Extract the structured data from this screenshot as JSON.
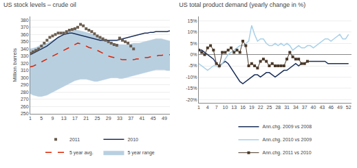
{
  "chart_data": [
    {
      "type": "line",
      "title": "US stock levels – crude oil",
      "ylabel": "Million barrels",
      "x": [
        1,
        2,
        3,
        4,
        5,
        6,
        7,
        8,
        9,
        10,
        11,
        12,
        13,
        14,
        15,
        16,
        17,
        18,
        19,
        20,
        21,
        22,
        23,
        24,
        25,
        26,
        27,
        28,
        29,
        30,
        31,
        32,
        33,
        34,
        35,
        36,
        37,
        38,
        39,
        40,
        41,
        42,
        43,
        44,
        45,
        46,
        47,
        48,
        49,
        50,
        51
      ],
      "xlim": [
        1,
        51
      ],
      "ylim": [
        250,
        385
      ],
      "xticks": [
        1,
        5,
        9,
        13,
        17,
        21,
        25,
        29,
        33,
        37,
        41,
        45,
        49
      ],
      "yticks": [
        250,
        260,
        270,
        280,
        290,
        300,
        310,
        320,
        330,
        340,
        350,
        360,
        370,
        380
      ],
      "grid": "y",
      "legend": "bottom",
      "series": [
        {
          "name": "5 year range",
          "type": "area",
          "color": "#b8cfe0",
          "lower": [
            278,
            276,
            275,
            274,
            274,
            275,
            276,
            278,
            280,
            282,
            284,
            286,
            288,
            290,
            292,
            294,
            296,
            297,
            298,
            298,
            298,
            297,
            296,
            295,
            295,
            296,
            297,
            298,
            299,
            300,
            300,
            300,
            299,
            299,
            300,
            301,
            302,
            303,
            304,
            305,
            306,
            307,
            308,
            309,
            310,
            311,
            311,
            311,
            311,
            310,
            310
          ],
          "upper": [
            340,
            341,
            342,
            344,
            346,
            347,
            348,
            350,
            352,
            354,
            356,
            358,
            360,
            362,
            364,
            365,
            366,
            366,
            365,
            364,
            363,
            362,
            361,
            360,
            358,
            356,
            354,
            352,
            350,
            349,
            348,
            347,
            346,
            346,
            346,
            346,
            347,
            348,
            348,
            348,
            349,
            350,
            351,
            352,
            353,
            354,
            354,
            354,
            353,
            352,
            351
          ]
        },
        {
          "name": "5 year avg.",
          "color": "#dd2200",
          "line_style": "dashed",
          "values": [
            315,
            316,
            318,
            320,
            322,
            324,
            326,
            328,
            330,
            332,
            334,
            336,
            338,
            340,
            342,
            344,
            346,
            348,
            347,
            346,
            344,
            342,
            341,
            340,
            338,
            336,
            334,
            332,
            330,
            329,
            328,
            327,
            326,
            325,
            325,
            325,
            325,
            325,
            326,
            326,
            327,
            328,
            328,
            329,
            330,
            330,
            331,
            331,
            332,
            332,
            332
          ]
        },
        {
          "name": "2010",
          "color": "#1a2f5a",
          "line_style": "solid",
          "values": [
            332,
            334,
            336,
            338,
            340,
            342,
            344,
            347,
            350,
            353,
            356,
            358,
            360,
            361,
            362,
            362,
            361,
            360,
            359,
            358,
            357,
            356,
            355,
            354,
            353,
            352,
            352,
            352,
            352,
            352,
            352,
            352,
            353,
            354,
            355,
            356,
            357,
            358,
            359,
            360,
            361,
            362,
            362,
            363,
            363,
            364,
            364,
            364,
            364,
            364,
            365
          ]
        },
        {
          "name": "2011",
          "color": "#6b5d4f",
          "line_style": "none",
          "marker": "square",
          "values": [
            334,
            336,
            338,
            340,
            344,
            348,
            352,
            356,
            358,
            360,
            362,
            362,
            362,
            364,
            366,
            367,
            368,
            370,
            374,
            372,
            368,
            366,
            364,
            361,
            358,
            356,
            354,
            352,
            350,
            348,
            346,
            345,
            355,
            352,
            350,
            348,
            344,
            340,
            null,
            null,
            null,
            null,
            null,
            null,
            null,
            null,
            null,
            null,
            null,
            null,
            null
          ]
        }
      ]
    },
    {
      "type": "line",
      "title": "US total product demand (yearly change in %)",
      "x": [
        1,
        2,
        3,
        4,
        5,
        6,
        7,
        8,
        9,
        10,
        11,
        12,
        13,
        14,
        15,
        16,
        17,
        18,
        19,
        20,
        21,
        22,
        23,
        24,
        25,
        26,
        27,
        28,
        29,
        30,
        31,
        32,
        33,
        34,
        35,
        36,
        37,
        38,
        39,
        40,
        41,
        42,
        43,
        44,
        45,
        46,
        47,
        48,
        49,
        50,
        51,
        52
      ],
      "xlim": [
        1,
        53
      ],
      "ylim": [
        -0.215,
        0.17
      ],
      "xticks": [
        1,
        4,
        7,
        10,
        13,
        16,
        19,
        22,
        25,
        28,
        31,
        34,
        37,
        40,
        43,
        46,
        49,
        52
      ],
      "yticks": [
        {
          "value": -0.2,
          "label": "-20%"
        },
        {
          "value": -0.15,
          "label": "-15%"
        },
        {
          "value": -0.1,
          "label": "-10%"
        },
        {
          "value": -0.05,
          "label": "-5%"
        },
        {
          "value": 0.0,
          "label": "0%"
        },
        {
          "value": 0.05,
          "label": "5%"
        },
        {
          "value": 0.1,
          "label": "10%"
        },
        {
          "value": 0.15,
          "label": "15%"
        }
      ],
      "grid": "y",
      "legend": "bottom",
      "series": [
        {
          "name": "Ann.chg. 2009 vs 2008",
          "color": "#1a2f5a",
          "line_style": "solid",
          "values": [
            0.02,
            0.02,
            0.01,
            0.0,
            -0.01,
            -0.02,
            -0.04,
            -0.05,
            -0.04,
            -0.03,
            -0.04,
            -0.06,
            -0.08,
            -0.1,
            -0.12,
            -0.13,
            -0.12,
            -0.11,
            -0.1,
            -0.09,
            -0.09,
            -0.1,
            -0.09,
            -0.08,
            -0.08,
            -0.09,
            -0.1,
            -0.09,
            -0.08,
            -0.07,
            -0.07,
            -0.06,
            -0.05,
            -0.04,
            -0.05,
            -0.04,
            -0.04,
            -0.03,
            -0.03,
            -0.03,
            -0.03,
            -0.03,
            -0.03,
            -0.03,
            -0.04,
            -0.04,
            -0.04,
            -0.04,
            -0.04,
            -0.04,
            -0.04,
            -0.04
          ]
        },
        {
          "name": "Ann.chg. 2010 vs 2009",
          "color": "#a8d0e8",
          "line_style": "solid",
          "values": [
            -0.04,
            -0.05,
            -0.06,
            -0.07,
            -0.06,
            -0.05,
            -0.05,
            -0.06,
            -0.04,
            -0.02,
            0.0,
            0.01,
            0.02,
            0.03,
            0.04,
            0.04,
            0.05,
            0.06,
            0.13,
            0.09,
            0.06,
            0.07,
            0.07,
            0.05,
            0.04,
            0.04,
            0.05,
            0.04,
            0.05,
            0.04,
            0.05,
            0.04,
            0.02,
            0.03,
            0.04,
            0.03,
            0.03,
            0.04,
            0.04,
            0.03,
            0.04,
            0.05,
            0.06,
            0.07,
            0.07,
            0.06,
            0.07,
            0.08,
            0.09,
            0.07,
            0.07,
            0.09
          ]
        },
        {
          "name": "Ann.chg. 2011 vs 2010",
          "color": "#4a3828",
          "line_style": "solid",
          "marker": "square",
          "values": [
            0.02,
            0.01,
            0.0,
            0.03,
            0.04,
            0.02,
            -0.04,
            -0.05,
            0.01,
            0.01,
            0.02,
            0.03,
            0.01,
            0.02,
            0.01,
            0.06,
            0.04,
            -0.05,
            -0.04,
            -0.05,
            -0.06,
            -0.03,
            -0.02,
            -0.03,
            -0.05,
            -0.04,
            -0.05,
            -0.05,
            -0.05,
            -0.05,
            -0.02,
            0.01,
            -0.01,
            -0.02,
            -0.02,
            -0.04,
            -0.04,
            -0.03,
            null,
            null,
            null,
            null,
            null,
            null,
            null,
            null,
            null,
            null,
            null,
            null,
            null,
            null
          ]
        }
      ]
    }
  ]
}
